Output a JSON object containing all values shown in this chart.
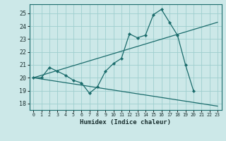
{
  "xlabel": "Humidex (Indice chaleur)",
  "ylabel": "",
  "bg_color": "#cce8e8",
  "line_color": "#1a6b6b",
  "grid_color": "#9ecece",
  "xlim": [
    -0.5,
    23.5
  ],
  "ylim": [
    17.5,
    25.7
  ],
  "yticks": [
    18,
    19,
    20,
    21,
    22,
    23,
    24,
    25
  ],
  "xticks": [
    0,
    1,
    2,
    3,
    4,
    5,
    6,
    7,
    8,
    9,
    10,
    11,
    12,
    13,
    14,
    15,
    16,
    17,
    18,
    19,
    20,
    21,
    22,
    23
  ],
  "line1_x": [
    0,
    1,
    2,
    3,
    4,
    5,
    6,
    7,
    8,
    9,
    10,
    11,
    12,
    13,
    14,
    15,
    16,
    17,
    18,
    19,
    20
  ],
  "line1_y": [
    20.0,
    20.0,
    20.8,
    20.5,
    20.2,
    19.8,
    19.6,
    18.8,
    19.3,
    20.5,
    21.1,
    21.5,
    23.4,
    23.1,
    23.3,
    24.9,
    25.3,
    24.3,
    23.3,
    21.0,
    19.0
  ],
  "line2_x": [
    0,
    23
  ],
  "line2_y": [
    20.0,
    17.8
  ],
  "line3_x": [
    0,
    23
  ],
  "line3_y": [
    20.0,
    24.3
  ]
}
